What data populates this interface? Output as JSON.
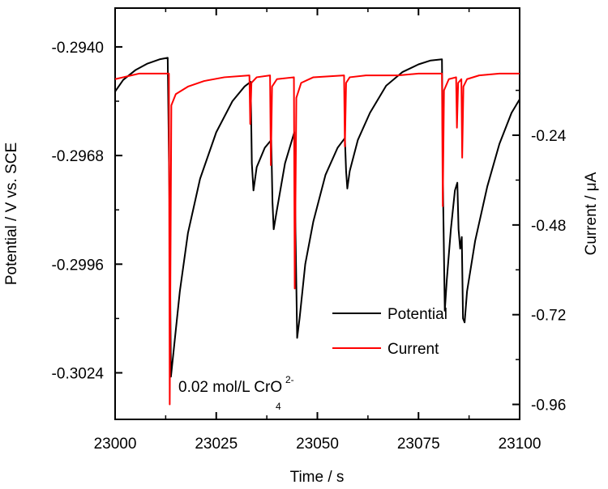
{
  "chart_data": {
    "type": "line",
    "xlabel": "Time / s",
    "ylabel_left": "Potential / V vs. SCE",
    "ylabel_right": "Current / μA",
    "xlim": [
      23000,
      23100
    ],
    "ylim_left": [
      -0.3036,
      -0.293
    ],
    "ylim_right": [
      -1.0,
      0.1
    ],
    "x_ticks": [
      23000,
      23025,
      23050,
      23075,
      23100
    ],
    "x_tick_labels": [
      "23000",
      "23025",
      "23050",
      "23075",
      "23100"
    ],
    "y_left_ticks": [
      -0.294,
      -0.2968,
      -0.2996,
      -0.3024
    ],
    "y_left_tick_labels": [
      "-0.2940",
      "-0.2968",
      "-0.2996",
      "-0.3024"
    ],
    "y_right_ticks": [
      -0.24,
      -0.48,
      -0.72,
      -0.96
    ],
    "y_right_tick_labels": [
      "-0.24",
      "-0.48",
      "-0.72",
      "-0.96"
    ],
    "grid": false,
    "legend_position": "center-right",
    "annotation": {
      "text": "0.02 mol/L CrO",
      "superscript": "2-",
      "subscript": "4"
    },
    "colors": {
      "potential": "#000000",
      "current": "#ff0000"
    },
    "series": [
      {
        "name": "Potential",
        "axis": "left",
        "points": [
          [
            23000,
            -0.29515
          ],
          [
            23002,
            -0.29485
          ],
          [
            23005,
            -0.2946
          ],
          [
            23008,
            -0.29443
          ],
          [
            23011,
            -0.29432
          ],
          [
            23013,
            -0.29428
          ],
          [
            23013.4,
            -0.2976
          ],
          [
            23013.8,
            -0.3025
          ],
          [
            23014.5,
            -0.3018
          ],
          [
            23016,
            -0.3003
          ],
          [
            23018,
            -0.2988
          ],
          [
            23021,
            -0.2974
          ],
          [
            23025,
            -0.2962
          ],
          [
            23029,
            -0.2954
          ],
          [
            23032,
            -0.29502
          ],
          [
            23033.5,
            -0.2949
          ],
          [
            23033.8,
            -0.297
          ],
          [
            23034.2,
            -0.2977
          ],
          [
            23035,
            -0.2971
          ],
          [
            23037,
            -0.2966
          ],
          [
            23038.6,
            -0.2964
          ],
          [
            23038.9,
            -0.298
          ],
          [
            23039.2,
            -0.2987
          ],
          [
            23040,
            -0.2982
          ],
          [
            23042,
            -0.297
          ],
          [
            23044.3,
            -0.2962
          ],
          [
            23044.6,
            -0.2988
          ],
          [
            23045,
            -0.3015
          ],
          [
            23045.6,
            -0.301
          ],
          [
            23047,
            -0.2996
          ],
          [
            23049,
            -0.2985
          ],
          [
            23052,
            -0.2973
          ],
          [
            23055,
            -0.2966
          ],
          [
            23056.8,
            -0.29635
          ],
          [
            23057.1,
            -0.2972
          ],
          [
            23057.4,
            -0.29765
          ],
          [
            23058,
            -0.2972
          ],
          [
            23060,
            -0.2964
          ],
          [
            23063,
            -0.2957
          ],
          [
            23067,
            -0.295
          ],
          [
            23071,
            -0.29465
          ],
          [
            23075,
            -0.29445
          ],
          [
            23078,
            -0.29435
          ],
          [
            23080.8,
            -0.29432
          ],
          [
            23081.1,
            -0.298
          ],
          [
            23081.5,
            -0.3008
          ],
          [
            23082,
            -0.3
          ],
          [
            23083,
            -0.2987
          ],
          [
            23084,
            -0.2977
          ],
          [
            23084.6,
            -0.2975
          ],
          [
            23084.9,
            -0.2987
          ],
          [
            23085.3,
            -0.2992
          ],
          [
            23085.7,
            -0.2989
          ],
          [
            23086,
            -0.301
          ],
          [
            23086.4,
            -0.3011
          ],
          [
            23087,
            -0.3003
          ],
          [
            23089,
            -0.299
          ],
          [
            23092,
            -0.2976
          ],
          [
            23095,
            -0.2965
          ],
          [
            23098,
            -0.2957
          ],
          [
            23100,
            -0.29535
          ]
        ]
      },
      {
        "name": "Current",
        "axis": "right",
        "points": [
          [
            23000,
            -0.09
          ],
          [
            23002,
            -0.085
          ],
          [
            23004,
            -0.08
          ],
          [
            23006,
            -0.075
          ],
          [
            23009,
            -0.075
          ],
          [
            23012,
            -0.075
          ],
          [
            23013.3,
            -0.075
          ],
          [
            23013.5,
            -0.96
          ],
          [
            23013.9,
            -0.16
          ],
          [
            23015,
            -0.13
          ],
          [
            23018,
            -0.11
          ],
          [
            23022,
            -0.095
          ],
          [
            23027,
            -0.085
          ],
          [
            23033.2,
            -0.08
          ],
          [
            23033.4,
            -0.21
          ],
          [
            23033.7,
            -0.1
          ],
          [
            23035,
            -0.085
          ],
          [
            23038.3,
            -0.08
          ],
          [
            23038.5,
            -0.32
          ],
          [
            23038.8,
            -0.11
          ],
          [
            23040,
            -0.09
          ],
          [
            23044.2,
            -0.085
          ],
          [
            23044.4,
            -0.65
          ],
          [
            23044.8,
            -0.14
          ],
          [
            23046,
            -0.1
          ],
          [
            23049,
            -0.085
          ],
          [
            23056.6,
            -0.08
          ],
          [
            23056.8,
            -0.27
          ],
          [
            23057.1,
            -0.1
          ],
          [
            23058,
            -0.085
          ],
          [
            23062,
            -0.08
          ],
          [
            23070,
            -0.08
          ],
          [
            23075,
            -0.075
          ],
          [
            23080.8,
            -0.075
          ],
          [
            23081,
            -0.43
          ],
          [
            23081.3,
            -0.12
          ],
          [
            23082.5,
            -0.09
          ],
          [
            23084.3,
            -0.085
          ],
          [
            23084.5,
            -0.22
          ],
          [
            23084.8,
            -0.1
          ],
          [
            23085.6,
            -0.09
          ],
          [
            23085.8,
            -0.3
          ],
          [
            23086.1,
            -0.11
          ],
          [
            23087,
            -0.09
          ],
          [
            23090,
            -0.08
          ],
          [
            23095,
            -0.075
          ],
          [
            23100,
            -0.075
          ]
        ]
      }
    ]
  }
}
